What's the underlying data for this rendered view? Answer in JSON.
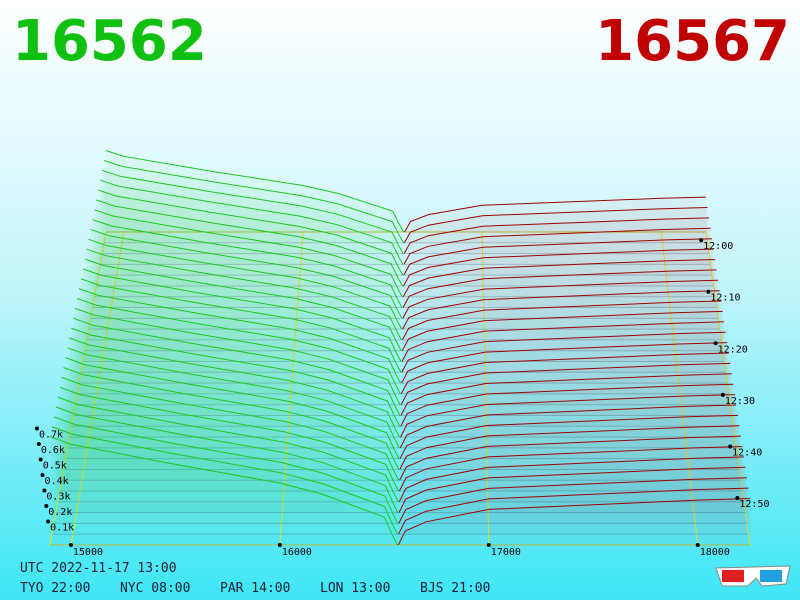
{
  "header": {
    "bid_price": 16562,
    "ask_price": 16567
  },
  "chart_data": {
    "type": "depth3d",
    "xlim": [
      14900,
      18250
    ],
    "xticks": [
      15000,
      16000,
      17000,
      18000
    ],
    "ylim": [
      0,
      800
    ],
    "yticks": [
      {
        "value": 100,
        "label": "0.1k"
      },
      {
        "value": 200,
        "label": "0.2k"
      },
      {
        "value": 300,
        "label": "0.3k"
      },
      {
        "value": 400,
        "label": "0.4k"
      },
      {
        "value": 500,
        "label": "0.5k"
      },
      {
        "value": 600,
        "label": "0.6k"
      },
      {
        "value": 700,
        "label": "0.7k"
      }
    ],
    "time_ticks": [
      "12:00",
      "12:10",
      "12:20",
      "12:30",
      "12:40",
      "12:50"
    ],
    "bids": {
      "color": "#1ec81e",
      "x": [
        14900,
        15000,
        15500,
        16000,
        16200,
        16500,
        16540,
        16562
      ],
      "values": [
        700,
        650,
        520,
        400,
        330,
        180,
        60,
        0
      ]
    },
    "asks": {
      "color": "#a00000",
      "x": [
        16567,
        16600,
        16700,
        17000,
        17500,
        18000,
        18250
      ],
      "values": [
        0,
        90,
        150,
        230,
        260,
        290,
        300
      ]
    }
  },
  "footer": {
    "utc": "UTC 2022-11-17 13:00",
    "zones": [
      "TYO 22:00",
      "NYC 08:00",
      "PAR 14:00",
      "LON 13:00",
      "BJS 21:00"
    ]
  }
}
